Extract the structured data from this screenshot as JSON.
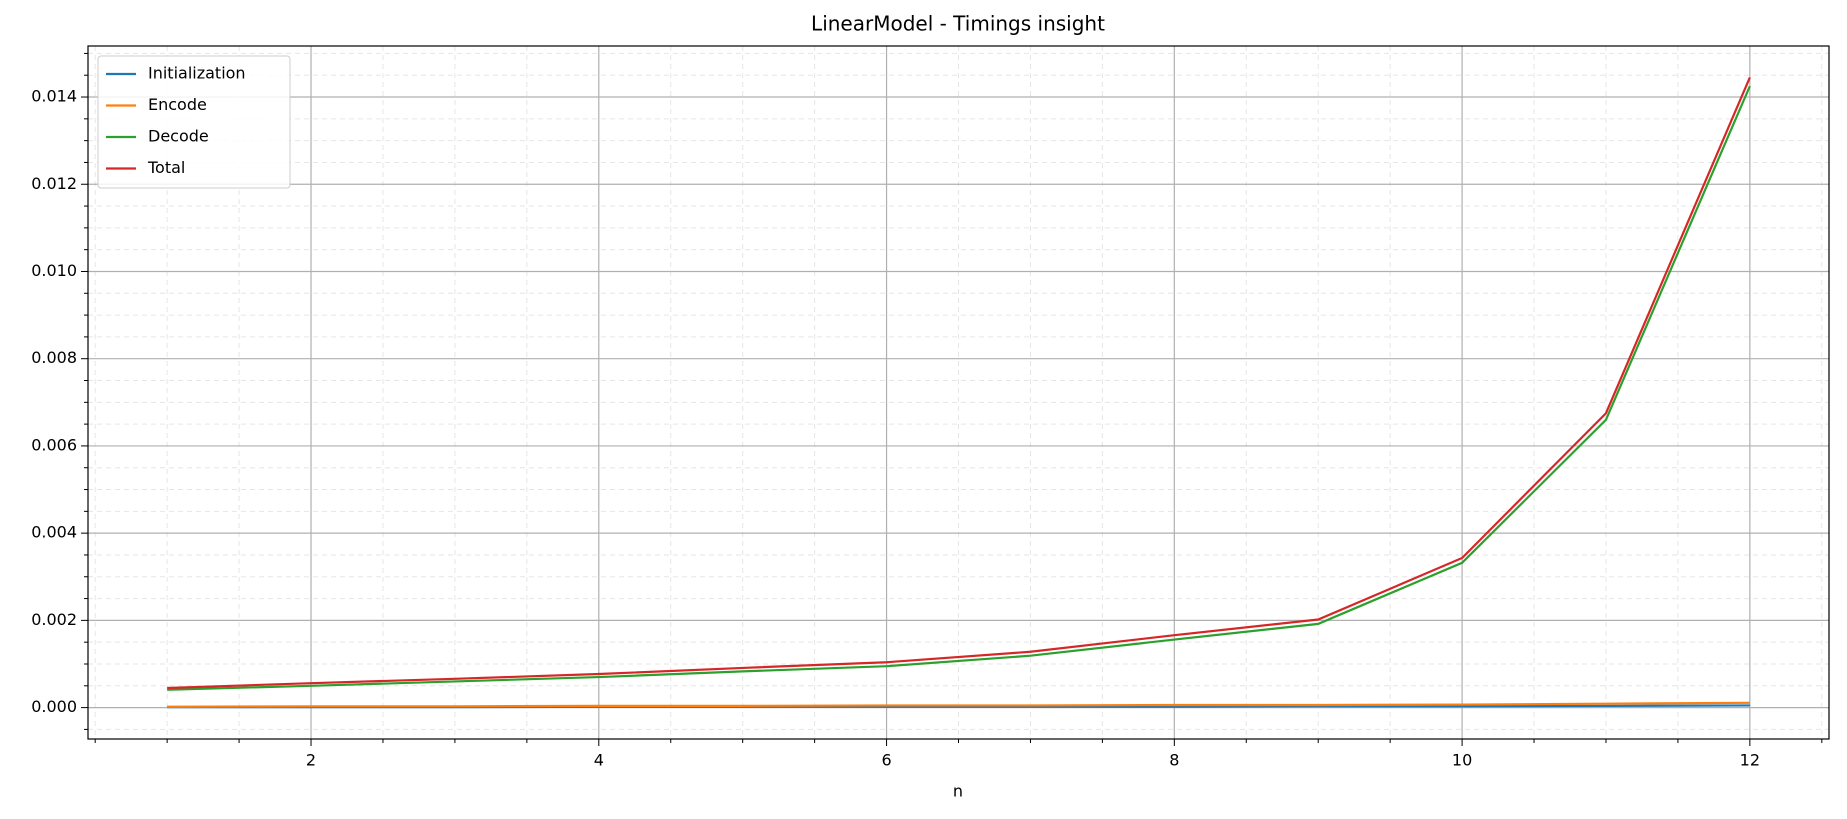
{
  "chart_data": {
    "type": "line",
    "title": "LinearModel - Timings insight",
    "x_label": "n",
    "x": [
      1,
      2,
      3,
      4,
      5,
      6,
      7,
      8,
      9,
      10,
      11,
      12
    ],
    "series": [
      {
        "name": "Initialization",
        "color": "#1f77b4",
        "values": [
          1e-05,
          1e-05,
          1e-05,
          2e-05,
          2e-05,
          2e-05,
          2e-05,
          2e-05,
          3e-05,
          3e-05,
          4e-05,
          5e-05
        ]
      },
      {
        "name": "Encode",
        "color": "#ff7f0e",
        "values": [
          2e-05,
          3e-05,
          3e-05,
          4e-05,
          4e-05,
          5e-05,
          5e-05,
          6e-05,
          6e-05,
          7e-05,
          9e-05,
          0.00011
        ]
      },
      {
        "name": "Decode",
        "color": "#2ca02c",
        "values": [
          0.00041,
          0.0005,
          0.0006,
          0.0007,
          0.00083,
          0.00095,
          0.00119,
          0.00156,
          0.00192,
          0.00332,
          0.0066,
          0.01425
        ]
      },
      {
        "name": "Total",
        "color": "#d62728",
        "values": [
          0.00045,
          0.00056,
          0.00066,
          0.00077,
          0.00091,
          0.00104,
          0.00128,
          0.00166,
          0.00202,
          0.00343,
          0.00675,
          0.01445
        ]
      }
    ],
    "xlim": [
      0.45,
      12.55
    ],
    "ylim": [
      -0.00072,
      0.01517
    ],
    "xticks": [
      2,
      4,
      6,
      8,
      10,
      12
    ],
    "yticks": [
      {
        "value": 0,
        "label": "0.000"
      },
      {
        "value": 0.002,
        "label": "0.002"
      },
      {
        "value": 0.004,
        "label": "0.004"
      },
      {
        "value": 0.006,
        "label": "0.006"
      },
      {
        "value": 0.008,
        "label": "0.008"
      },
      {
        "value": 0.01,
        "label": "0.010"
      },
      {
        "value": 0.012,
        "label": "0.012"
      },
      {
        "value": 0.014,
        "label": "0.014"
      }
    ],
    "minor_xticks": [
      0.5,
      1,
      1.5,
      2.5,
      3,
      3.5,
      4.5,
      5,
      5.5,
      6.5,
      7,
      7.5,
      8.5,
      9,
      9.5,
      10.5,
      11,
      11.5,
      12.5
    ],
    "minor_yticks": [
      -0.0005,
      0.0005,
      0.001,
      0.0015,
      0.0025,
      0.003,
      0.0035,
      0.0045,
      0.005,
      0.0055,
      0.0065,
      0.007,
      0.0075,
      0.0085,
      0.009,
      0.0095,
      0.0105,
      0.011,
      0.0115,
      0.0125,
      0.013,
      0.0135,
      0.0145,
      0.015
    ],
    "grid": true,
    "minor_grid": true,
    "legend": "upper-left"
  }
}
